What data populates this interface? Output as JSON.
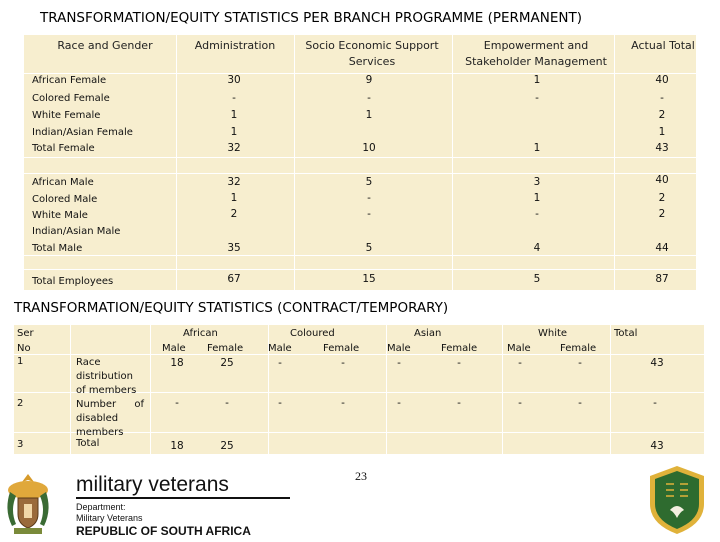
{
  "title_permanent": "TRANSFORMATION/EQUITY STATISTICS PER BRANCH PROGRAMME (PERMANENT)",
  "perm_headers": [
    "Race and Gender",
    "Administration",
    "Socio Economic Support Services",
    "Empowerment and Stakeholder Management",
    "Actual Total"
  ],
  "perm_rows": [
    {
      "label": "African Female",
      "v": [
        "30",
        "9",
        "1",
        "40"
      ]
    },
    {
      "label": "Colored Female",
      "v": [
        "-",
        "-",
        "-",
        "-"
      ]
    },
    {
      "label": "White Female",
      "v": [
        "1",
        "1",
        "",
        "2"
      ]
    },
    {
      "label": "Indian/Asian Female",
      "v": [
        "1",
        "",
        "",
        "1"
      ]
    },
    {
      "label": "Total Female",
      "v": [
        "32",
        "10",
        "1",
        "43"
      ]
    },
    {
      "label": "African Male",
      "v": [
        "32",
        "5",
        "3",
        "40"
      ]
    },
    {
      "label": "Colored Male",
      "v": [
        "1",
        "-",
        "1",
        "2"
      ]
    },
    {
      "label": "White Male",
      "v": [
        "2",
        "-",
        "-",
        "2"
      ]
    },
    {
      "label": "Indian/Asian Male",
      "v": [
        "",
        "",
        "",
        ""
      ]
    },
    {
      "label": "Total Male",
      "v": [
        "35",
        "5",
        "4",
        "44"
      ]
    },
    {
      "label": "Total Employees",
      "v": [
        "67",
        "15",
        "5",
        "87"
      ]
    }
  ],
  "title_contract": "TRANSFORMATION/EQUITY STATISTICS (CONTRACT/TEMPORARY)",
  "contract": {
    "ser_no": [
      "Ser",
      "No"
    ],
    "groups": [
      "African",
      "Coloured",
      "Asian",
      "White"
    ],
    "total_header": "Total",
    "sub": [
      "Male",
      "Female"
    ],
    "rows": [
      {
        "no": "1",
        "desc": "Race distribution of members",
        "v": [
          "18",
          "25",
          "-",
          "-",
          "-",
          "-",
          "-",
          "-"
        ],
        "total": "43"
      },
      {
        "no": "2",
        "desc": "Number of disabled members",
        "v": [
          "-",
          "-",
          "-",
          "-",
          "-",
          "-",
          "-",
          "-"
        ],
        "total": "-"
      },
      {
        "no": "3",
        "desc": "Total",
        "v": [
          "18",
          "25",
          "",
          "",
          "",
          "",
          "",
          ""
        ],
        "total": "43"
      }
    ]
  },
  "footer": {
    "brand": "military veterans",
    "dept1": "Department:",
    "dept2": "Military Veterans",
    "country": "REPUBLIC OF SOUTH AFRICA",
    "page": "23"
  },
  "colors": {
    "table_bg": "#f7eecf",
    "badge_green": "#2e6b2f",
    "badge_gold": "#e0b23a"
  }
}
